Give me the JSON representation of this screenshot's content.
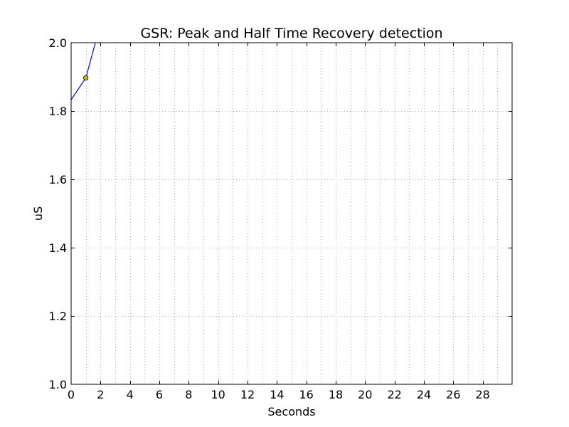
{
  "chart_data": {
    "type": "line",
    "title": "GSR: Peak and Half Time Recovery detection",
    "xlabel": "Seconds",
    "ylabel": "uS",
    "xlim": [
      0,
      30
    ],
    "ylim": [
      1.0,
      2.0
    ],
    "x_ticks": [
      0,
      2,
      4,
      6,
      8,
      10,
      12,
      14,
      16,
      18,
      20,
      22,
      24,
      26,
      28
    ],
    "x_ticks_labels": [
      "0",
      "2",
      "4",
      "6",
      "8",
      "10",
      "12",
      "14",
      "16",
      "18",
      "20",
      "22",
      "24",
      "26",
      "28"
    ],
    "y_ticks": [
      1.0,
      1.2,
      1.4,
      1.6,
      1.8,
      2.0
    ],
    "y_ticks_labels": [
      "1.0",
      "1.2",
      "1.4",
      "1.6",
      "1.8",
      "2.0"
    ],
    "x_minor_grid": [
      1,
      3,
      5,
      7,
      9,
      11,
      13,
      15,
      17,
      19,
      21,
      23,
      25,
      27,
      29
    ],
    "grid": true,
    "series": [
      {
        "color": "#0000ff",
        "x": [
          0,
          1,
          1.65
        ],
        "y": [
          1.833,
          1.897,
          2.0
        ]
      }
    ],
    "markers": [
      {
        "x": 1,
        "y": 1.897,
        "fill": "#bfbf00",
        "stroke": "#000000"
      }
    ]
  }
}
